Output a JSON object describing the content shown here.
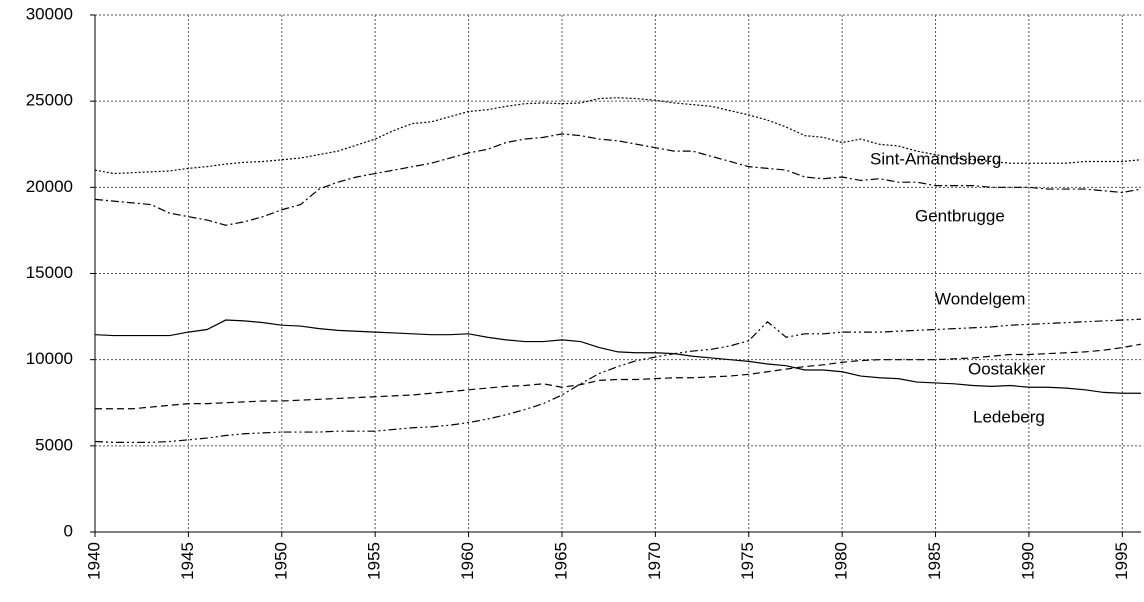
{
  "chart_data": {
    "type": "line",
    "x": [
      1940,
      1941,
      1942,
      1943,
      1944,
      1945,
      1946,
      1947,
      1948,
      1949,
      1950,
      1951,
      1952,
      1953,
      1954,
      1955,
      1956,
      1957,
      1958,
      1959,
      1960,
      1961,
      1962,
      1963,
      1964,
      1965,
      1966,
      1967,
      1968,
      1969,
      1970,
      1971,
      1972,
      1973,
      1974,
      1975,
      1976,
      1977,
      1978,
      1979,
      1980,
      1981,
      1982,
      1983,
      1984,
      1985,
      1986,
      1987,
      1988,
      1989,
      1990,
      1991,
      1992,
      1993,
      1994,
      1995,
      1996
    ],
    "series": [
      {
        "name": "Sint-Amandsberg",
        "color": "#000000",
        "dash": "dotted",
        "values": [
          21000,
          20800,
          20850,
          20900,
          20950,
          21100,
          21200,
          21350,
          21450,
          21500,
          21600,
          21700,
          21900,
          22100,
          22450,
          22800,
          23300,
          23700,
          23800,
          24100,
          24400,
          24500,
          24700,
          24850,
          24900,
          24850,
          24900,
          25150,
          25200,
          25150,
          25050,
          24900,
          24800,
          24700,
          24450,
          24200,
          23900,
          23500,
          23000,
          22900,
          22600,
          22800,
          22500,
          22400,
          22100,
          21900,
          21700,
          21600,
          21500,
          21400,
          21400,
          21400,
          21400,
          21500,
          21500,
          21500,
          21600
        ]
      },
      {
        "name": "Gentbrugge",
        "color": "#000000",
        "dash": "dashdot",
        "values": [
          19300,
          19200,
          19100,
          19000,
          18500,
          18300,
          18100,
          17800,
          18000,
          18300,
          18700,
          19000,
          19900,
          20300,
          20600,
          20800,
          21000,
          21200,
          21400,
          21700,
          22000,
          22200,
          22600,
          22800,
          22900,
          23100,
          23000,
          22800,
          22700,
          22500,
          22300,
          22100,
          22100,
          21800,
          21500,
          21200,
          21100,
          21000,
          20600,
          20500,
          20600,
          20400,
          20500,
          20300,
          20300,
          20100,
          20100,
          20100,
          20000,
          20000,
          20000,
          19900,
          19900,
          19900,
          19800,
          19700,
          19900
        ]
      },
      {
        "name": "Wondelgem",
        "color": "#000000",
        "dash": "dashdotdot",
        "values": [
          5250,
          5200,
          5200,
          5200,
          5250,
          5350,
          5450,
          5600,
          5700,
          5750,
          5800,
          5800,
          5800,
          5850,
          5850,
          5850,
          5950,
          6050,
          6100,
          6200,
          6350,
          6550,
          6800,
          7100,
          7450,
          7950,
          8600,
          9200,
          9600,
          9950,
          10150,
          10350,
          10500,
          10600,
          10800,
          11100,
          12200,
          11300,
          11500,
          11500,
          11600,
          11600,
          11600,
          11650,
          11700,
          11750,
          11800,
          11850,
          11900,
          12000,
          12050,
          12100,
          12150,
          12200,
          12250,
          12300,
          12350
        ]
      },
      {
        "name": "Oostakker",
        "color": "#000000",
        "dash": "dashed",
        "values": [
          7150,
          7150,
          7150,
          7250,
          7350,
          7450,
          7450,
          7500,
          7550,
          7600,
          7600,
          7650,
          7700,
          7750,
          7800,
          7850,
          7900,
          7950,
          8050,
          8150,
          8250,
          8350,
          8450,
          8500,
          8600,
          8400,
          8550,
          8800,
          8850,
          8850,
          8900,
          8950,
          8950,
          9000,
          9050,
          9150,
          9300,
          9450,
          9600,
          9700,
          9850,
          9950,
          10000,
          10000,
          10000,
          10000,
          10050,
          10100,
          10200,
          10300,
          10300,
          10350,
          10400,
          10450,
          10550,
          10700,
          10900
        ]
      },
      {
        "name": "Ledeberg",
        "color": "#000000",
        "dash": "solid",
        "values": [
          11450,
          11400,
          11400,
          11400,
          11400,
          11600,
          11750,
          12300,
          12250,
          12150,
          12000,
          11950,
          11800,
          11700,
          11650,
          11600,
          11550,
          11500,
          11450,
          11450,
          11500,
          11300,
          11150,
          11050,
          11050,
          11150,
          11050,
          10700,
          10450,
          10400,
          10400,
          10350,
          10200,
          10100,
          10000,
          9900,
          9750,
          9650,
          9400,
          9400,
          9300,
          9050,
          8950,
          8900,
          8700,
          8650,
          8600,
          8500,
          8450,
          8500,
          8400,
          8400,
          8350,
          8250,
          8100,
          8050,
          8050
        ]
      }
    ],
    "xlim": [
      1940,
      1996
    ],
    "xticks": [
      1940,
      1945,
      1950,
      1955,
      1960,
      1965,
      1970,
      1975,
      1980,
      1985,
      1990,
      1995
    ],
    "ylim": [
      0,
      30000
    ],
    "yticks": [
      0,
      5000,
      10000,
      15000,
      20000,
      25000,
      30000
    ],
    "grid": true
  }
}
